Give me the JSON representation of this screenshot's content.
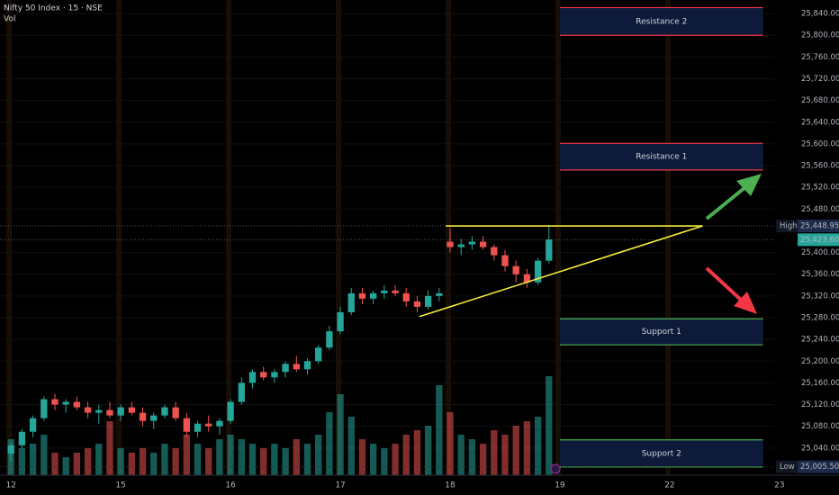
{
  "chart_data": {
    "type": "candlestick",
    "title": "Nifty 50 Index · 15 · NSE",
    "volume_label": "Vol",
    "up_color": "#26a69a",
    "down_color": "#ef5350",
    "ylim": [
      24990,
      25865
    ],
    "xlim": [
      -1,
      70.5
    ],
    "yticks": [
      {
        "value": 25040,
        "label": "25,040.00"
      },
      {
        "value": 25080,
        "label": "25,080.00"
      },
      {
        "value": 25120,
        "label": "25,120.00"
      },
      {
        "value": 25160,
        "label": "25,160.00"
      },
      {
        "value": 25200,
        "label": "25,200.00"
      },
      {
        "value": 25240,
        "label": "25,240.00"
      },
      {
        "value": 25280,
        "label": "25,280.00"
      },
      {
        "value": 25320,
        "label": "25,320.00"
      },
      {
        "value": 25360,
        "label": "25,360.00"
      },
      {
        "value": 25400,
        "label": "25,400.00"
      },
      {
        "value": 25480,
        "label": "25,480.00"
      },
      {
        "value": 25520,
        "label": "25,520.00"
      },
      {
        "value": 25560,
        "label": "25,560.00"
      },
      {
        "value": 25600,
        "label": "25,600.00"
      },
      {
        "value": 25640,
        "label": "25,640.00"
      },
      {
        "value": 25680,
        "label": "25,680.00"
      },
      {
        "value": 25720,
        "label": "25,720.00"
      },
      {
        "value": 25760,
        "label": "25,760.00"
      },
      {
        "value": 25800,
        "label": "25,800.00"
      },
      {
        "value": 25840,
        "label": "25,840.00"
      }
    ],
    "xticks": [
      {
        "value": 0,
        "label": "12"
      },
      {
        "value": 10,
        "label": "15"
      },
      {
        "value": 20,
        "label": "16"
      },
      {
        "value": 30,
        "label": "17"
      },
      {
        "value": 40,
        "label": "18"
      },
      {
        "value": 50,
        "label": "19"
      },
      {
        "value": 60,
        "label": "22"
      },
      {
        "value": 70,
        "label": "23"
      }
    ],
    "x": [
      0,
      1,
      2,
      3,
      4,
      5,
      6,
      7,
      8,
      9,
      10,
      11,
      12,
      13,
      14,
      15,
      16,
      17,
      18,
      19,
      20,
      21,
      22,
      23,
      24,
      25,
      26,
      27,
      28,
      29,
      30,
      31,
      32,
      33,
      34,
      35,
      36,
      37,
      38,
      39,
      40,
      41,
      42,
      43,
      44,
      45,
      46,
      47,
      48,
      49
    ],
    "candles": [
      [
        25030,
        25050,
        25015,
        25045
      ],
      [
        25045,
        25075,
        25040,
        25070
      ],
      [
        25070,
        25100,
        25060,
        25095
      ],
      [
        25095,
        25135,
        25090,
        25130
      ],
      [
        25130,
        25140,
        25110,
        25120
      ],
      [
        25120,
        25130,
        25105,
        25125
      ],
      [
        25125,
        25135,
        25110,
        25115
      ],
      [
        25115,
        25125,
        25095,
        25105
      ],
      [
        25105,
        25120,
        25085,
        25110
      ],
      [
        25110,
        25125,
        25095,
        25100
      ],
      [
        25100,
        25120,
        25090,
        25115
      ],
      [
        25115,
        25125,
        25100,
        25105
      ],
      [
        25105,
        25115,
        25080,
        25090
      ],
      [
        25090,
        25105,
        25075,
        25100
      ],
      [
        25100,
        25120,
        25095,
        25115
      ],
      [
        25115,
        25125,
        25090,
        25095
      ],
      [
        25095,
        25105,
        25060,
        25070
      ],
      [
        25070,
        25090,
        25060,
        25085
      ],
      [
        25085,
        25100,
        25070,
        25080
      ],
      [
        25080,
        25095,
        25065,
        25090
      ],
      [
        25090,
        25130,
        25085,
        25125
      ],
      [
        25125,
        25170,
        25120,
        25160
      ],
      [
        25160,
        25185,
        25150,
        25180
      ],
      [
        25180,
        25190,
        25165,
        25170
      ],
      [
        25170,
        25185,
        25160,
        25180
      ],
      [
        25180,
        25200,
        25170,
        25195
      ],
      [
        25195,
        25210,
        25180,
        25185
      ],
      [
        25185,
        25205,
        25175,
        25200
      ],
      [
        25200,
        25230,
        25195,
        25225
      ],
      [
        25225,
        25265,
        25220,
        25255
      ],
      [
        25255,
        25300,
        25250,
        25290
      ],
      [
        25290,
        25335,
        25285,
        25325
      ],
      [
        25325,
        25335,
        25305,
        25315
      ],
      [
        25315,
        25330,
        25305,
        25325
      ],
      [
        25325,
        25340,
        25315,
        25330
      ],
      [
        25330,
        25340,
        25320,
        25325
      ],
      [
        25325,
        25335,
        25300,
        25310
      ],
      [
        25310,
        25320,
        25290,
        25300
      ],
      [
        25300,
        25330,
        25295,
        25320
      ],
      [
        25320,
        25335,
        25310,
        25325
      ],
      [
        25420,
        25445,
        25400,
        25410
      ],
      [
        25410,
        25425,
        25395,
        25415
      ],
      [
        25415,
        25430,
        25405,
        25420
      ],
      [
        25420,
        25430,
        25405,
        25410
      ],
      [
        25410,
        25415,
        25385,
        25395
      ],
      [
        25395,
        25405,
        25365,
        25375
      ],
      [
        25375,
        25385,
        25345,
        25360
      ],
      [
        25360,
        25370,
        25335,
        25345
      ],
      [
        25345,
        25390,
        25340,
        25385
      ],
      [
        25385,
        25449,
        25380,
        25424
      ]
    ],
    "volume": [
      40,
      30,
      35,
      45,
      25,
      20,
      25,
      30,
      35,
      60,
      30,
      25,
      30,
      25,
      35,
      30,
      45,
      35,
      30,
      40,
      45,
      40,
      35,
      30,
      35,
      30,
      40,
      35,
      45,
      70,
      90,
      65,
      40,
      35,
      30,
      35,
      45,
      50,
      55,
      100,
      70,
      45,
      40,
      35,
      50,
      45,
      55,
      60,
      65,
      110
    ],
    "zones": [
      {
        "label": "Resistance 2",
        "high": 25851,
        "low": 25800,
        "start": 50,
        "end": 68.5,
        "color": "#f23645"
      },
      {
        "label": "Resistance 1",
        "high": 25601,
        "low": 25552,
        "start": 50,
        "end": 68.5,
        "color": "#f23645"
      },
      {
        "label": "Support 1",
        "high": 25278,
        "low": 25230,
        "start": 50,
        "end": 68.5,
        "color": "#4caf50"
      },
      {
        "label": "Support 2",
        "high": 25055,
        "low": 25005,
        "start": 50,
        "end": 68.5,
        "color": "#4caf50"
      }
    ],
    "lines": [
      {
        "x": [
          39.6,
          63
        ],
        "y": [
          25448.95,
          25448.95
        ],
        "color": "#f5e93b"
      },
      {
        "x": [
          37.2,
          63
        ],
        "y": [
          25282,
          25449
        ],
        "color": "#f5e93b"
      }
    ],
    "high": {
      "label": "High",
      "value": 25448.95,
      "value_label": "25,448.95"
    },
    "low": {
      "label": "Low",
      "value": 25005.5,
      "value_label": "25,005.50"
    },
    "last": {
      "value": 25423.6,
      "value_label": "25,423.60"
    }
  }
}
